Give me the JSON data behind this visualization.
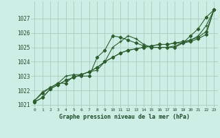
{
  "title": "Graphe pression niveau de la mer (hPa)",
  "bg_color": "#cceee4",
  "grid_color": "#aaccbb",
  "line_color": "#2d5e30",
  "xlim": [
    -0.5,
    23.5
  ],
  "ylim": [
    1020.8,
    1028.2
  ],
  "yticks": [
    1021,
    1022,
    1023,
    1024,
    1025,
    1026,
    1027
  ],
  "xticks": [
    0,
    1,
    2,
    3,
    4,
    5,
    6,
    7,
    8,
    9,
    10,
    11,
    12,
    13,
    14,
    15,
    16,
    17,
    18,
    19,
    20,
    21,
    22,
    23
  ],
  "series_spike": [
    1021.3,
    1021.8,
    1022.2,
    1022.5,
    1022.5,
    1023.0,
    1023.0,
    1023.0,
    1024.3,
    1024.8,
    1025.8,
    1025.7,
    1025.5,
    1025.3,
    1025.1,
    1025.0,
    1025.0,
    1025.0,
    1025.0,
    1025.3,
    1025.8,
    1026.3,
    1027.1,
    1027.6
  ],
  "series_straight1": [
    1021.2,
    1021.5,
    1022.1,
    1022.4,
    1022.7,
    1022.9,
    1023.1,
    1023.3,
    1023.6,
    1024.0,
    1024.3,
    1024.6,
    1024.8,
    1024.9,
    1025.0,
    1025.1,
    1025.2,
    1025.2,
    1025.3,
    1025.3,
    1025.4,
    1025.6,
    1025.9,
    1027.6
  ],
  "series_straight2": [
    1021.2,
    1021.5,
    1022.1,
    1022.4,
    1022.7,
    1022.9,
    1023.1,
    1023.3,
    1023.6,
    1024.0,
    1024.3,
    1024.6,
    1024.8,
    1024.9,
    1025.0,
    1025.1,
    1025.2,
    1025.2,
    1025.3,
    1025.4,
    1025.5,
    1025.7,
    1026.1,
    1027.6
  ],
  "series_wavy": [
    1021.3,
    1021.9,
    1022.2,
    1022.5,
    1023.0,
    1023.1,
    1023.1,
    1023.3,
    1023.4,
    1024.0,
    1025.0,
    1025.4,
    1025.8,
    1025.6,
    1025.2,
    1025.0,
    1025.0,
    1025.0,
    1025.1,
    1025.3,
    1025.5,
    1025.8,
    1026.5,
    1027.6
  ]
}
